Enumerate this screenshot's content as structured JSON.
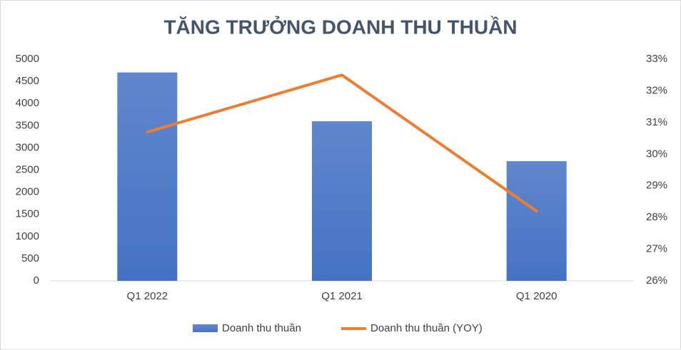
{
  "chart_data": {
    "type": "bar-line",
    "title": "TĂNG TRƯỞNG DOANH THU THUẦN",
    "categories": [
      "Q1 2022",
      "Q1 2021",
      "Q1 2020"
    ],
    "series": [
      {
        "name": "Doanh thu thuần",
        "type": "bar",
        "color": "#4472c4",
        "values": [
          4700,
          3600,
          2700
        ]
      },
      {
        "name": "Doanh thu thuần (YOY)",
        "type": "line",
        "axis": "y2",
        "color": "#ed7d31",
        "values": [
          30.7,
          32.5,
          28.2
        ]
      }
    ],
    "ylim": [
      0,
      5000
    ],
    "yticks": [
      0,
      500,
      1000,
      1500,
      2000,
      2500,
      3000,
      3500,
      4000,
      4500,
      5000
    ],
    "y2lim": [
      26,
      33
    ],
    "y2ticks": [
      {
        "value": 26,
        "label": "26%"
      },
      {
        "value": 27,
        "label": "27%"
      },
      {
        "value": 28,
        "label": "28%"
      },
      {
        "value": 29,
        "label": "29%"
      },
      {
        "value": 30,
        "label": "30%"
      },
      {
        "value": 31,
        "label": "31%"
      },
      {
        "value": 32,
        "label": "32%"
      },
      {
        "value": 33,
        "label": "33%"
      }
    ],
    "grid": false,
    "legend": "bottom"
  }
}
